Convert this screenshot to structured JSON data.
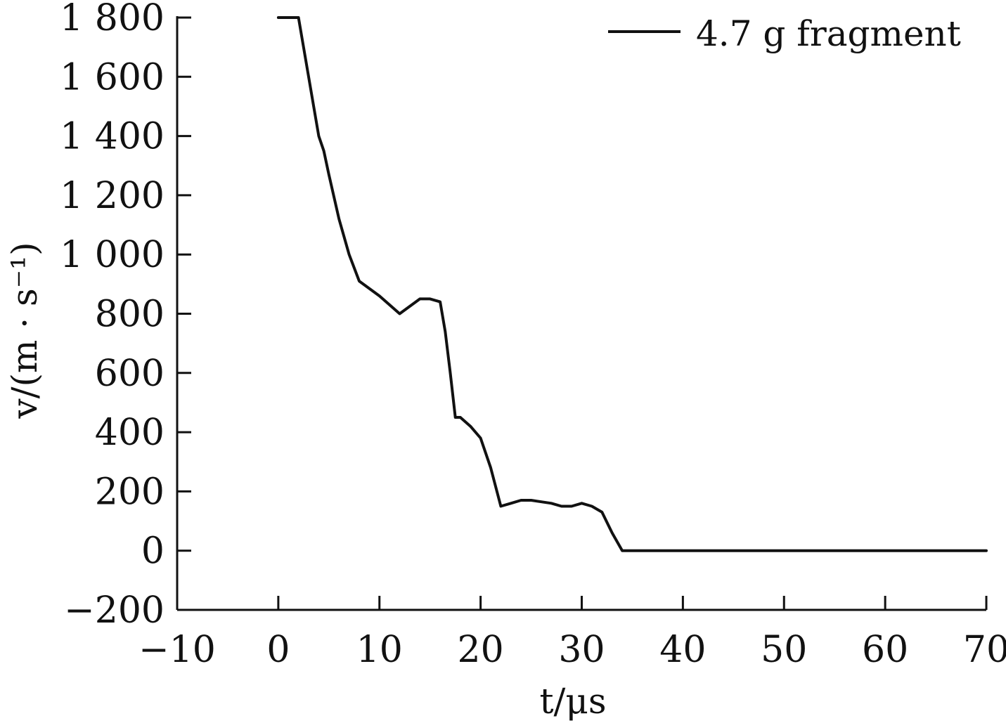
{
  "chart_data": {
    "type": "line",
    "title": "",
    "xlabel": "t/μs",
    "ylabel": "v/(m · s⁻¹)",
    "xlim": [
      -10,
      70
    ],
    "ylim": [
      -200,
      1800
    ],
    "x_ticks": [
      -10,
      0,
      10,
      20,
      30,
      40,
      50,
      60,
      70
    ],
    "y_ticks": [
      -200,
      0,
      200,
      400,
      600,
      800,
      1000,
      1200,
      1400,
      1600,
      1800
    ],
    "x_tick_labels": [
      "−10",
      "0",
      "10",
      "20",
      "30",
      "40",
      "50",
      "60",
      "70"
    ],
    "y_tick_labels": [
      "−200",
      "0",
      "200",
      "400",
      "600",
      "800",
      "1 000",
      "1 200",
      "1 400",
      "1 600",
      "1 800"
    ],
    "grid": false,
    "legend": {
      "position": "top-right"
    },
    "series": [
      {
        "name": "4.7 g fragment",
        "color": "#111111",
        "x": [
          0,
          2,
          2.5,
          3,
          3.5,
          4,
          4.5,
          5,
          6,
          7,
          8,
          10,
          12,
          14,
          15,
          16,
          16.5,
          17,
          17.5,
          18,
          19,
          20,
          21,
          22,
          23,
          24,
          25,
          26,
          27,
          28,
          29,
          30,
          31,
          32,
          33,
          34,
          70
        ],
        "y": [
          1800,
          1800,
          1700,
          1600,
          1500,
          1400,
          1350,
          1270,
          1120,
          1000,
          910,
          860,
          800,
          850,
          850,
          840,
          740,
          600,
          450,
          450,
          420,
          380,
          280,
          150,
          160,
          170,
          170,
          165,
          160,
          150,
          150,
          160,
          150,
          130,
          60,
          0,
          0
        ]
      }
    ]
  }
}
